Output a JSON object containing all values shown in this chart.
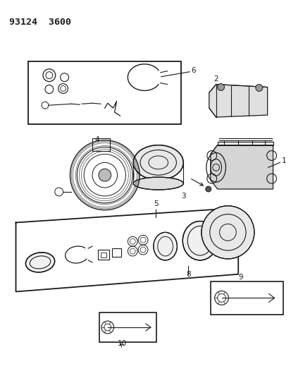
{
  "title": "93124  3600",
  "bg_color": "#ffffff",
  "line_color": "#1a1a1a",
  "fig_width": 4.14,
  "fig_height": 5.33,
  "dpi": 100
}
